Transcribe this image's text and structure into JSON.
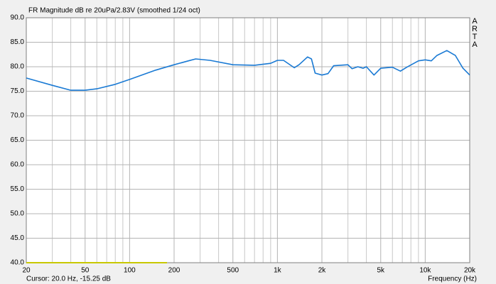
{
  "chart_data": {
    "type": "line",
    "title": "FR Magnitude dB re 20uPa/2.83V (smoothed 1/24 oct)",
    "brand": "ARTA",
    "cursor_text": "Cursor: 20.0 Hz, -15.25 dB",
    "x_label": "Frequency (Hz)",
    "x_log": true,
    "x": [
      20,
      30,
      40,
      50,
      60,
      80,
      100,
      150,
      200,
      250,
      280,
      350,
      500,
      700,
      900,
      1000,
      1100,
      1300,
      1400,
      1600,
      1700,
      1800,
      2000,
      2200,
      2400,
      3000,
      3200,
      3500,
      3800,
      4000,
      4500,
      5000,
      6000,
      6800,
      7500,
      9000,
      10000,
      11000,
      12000,
      14000,
      16000,
      18000,
      20000
    ],
    "values": [
      77.7,
      76.2,
      75.2,
      75.2,
      75.5,
      76.4,
      77.4,
      79.3,
      80.4,
      81.2,
      81.6,
      81.3,
      80.4,
      80.3,
      80.7,
      81.3,
      81.3,
      79.8,
      80.4,
      82.0,
      81.6,
      78.7,
      78.3,
      78.6,
      80.2,
      80.4,
      79.6,
      80.0,
      79.7,
      80.0,
      78.3,
      79.7,
      79.9,
      79.1,
      79.9,
      81.2,
      81.4,
      81.2,
      82.3,
      83.3,
      82.3,
      79.7,
      78.3
    ],
    "color": "#1a7ad4",
    "cursor_band": {
      "x": [
        20,
        179
      ],
      "values": [
        40,
        40
      ],
      "color": "#c8c800"
    },
    "xlim": [
      20,
      20000
    ],
    "ylim": [
      40,
      90
    ],
    "xticks": [
      20,
      50,
      100,
      200,
      500,
      {
        "value": 1000,
        "label": "1k"
      },
      {
        "value": 2000,
        "label": "2k"
      },
      {
        "value": 5000,
        "label": "5k"
      },
      {
        "value": 10000,
        "label": "10k"
      },
      {
        "value": 20000,
        "label": "20k"
      }
    ],
    "xgrid_minor": [
      30,
      40,
      60,
      70,
      80,
      90,
      300,
      400,
      600,
      700,
      800,
      900,
      3000,
      4000,
      6000,
      7000,
      8000,
      9000
    ],
    "yticks": [
      {
        "value": 40,
        "label": "40.0"
      },
      {
        "value": 45,
        "label": "45.0"
      },
      {
        "value": 50,
        "label": "50.0"
      },
      {
        "value": 55,
        "label": "55.0"
      },
      {
        "value": 60,
        "label": "60.0"
      },
      {
        "value": 65,
        "label": "65.0"
      },
      {
        "value": 70,
        "label": "70.0"
      },
      {
        "value": 75,
        "label": "75.0"
      },
      {
        "value": 80,
        "label": "80.0"
      },
      {
        "value": 85,
        "label": "85.0"
      },
      {
        "value": 90,
        "label": "90.0"
      }
    ],
    "grid": true
  }
}
